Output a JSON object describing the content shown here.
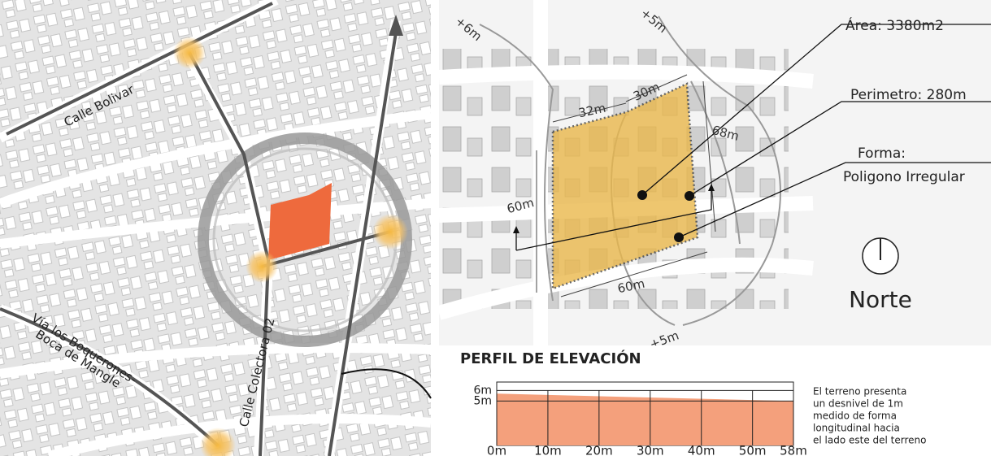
{
  "map": {
    "streets": [
      "Calle Bolivar",
      "Vía los Boquerones-",
      "Boca de Mangle",
      "Calle Colectora 02"
    ]
  },
  "site": {
    "contours": [
      "+6m",
      "+5m",
      "+5m"
    ],
    "dimensions": [
      "32m",
      "30m",
      "68m",
      "60m",
      "60m"
    ],
    "area": "Área: 3380m2",
    "perimeter": "Perimetro: 280m",
    "shape_label": "Forma:",
    "shape": "Poligono Irregular",
    "north": "Norte"
  },
  "chart_data": {
    "type": "area",
    "title": "PERFIL DE ELEVACIÓN",
    "x": [
      0,
      58
    ],
    "values": [
      5.7,
      5.0
    ],
    "color": "#f4a07c",
    "xlim": [
      0,
      58
    ],
    "ylim": [
      0.8,
      6.8
    ],
    "xticks": [
      {
        "value": 0,
        "label": "0m"
      },
      {
        "value": 10,
        "label": "10m"
      },
      {
        "value": 20,
        "label": "20m"
      },
      {
        "value": 30,
        "label": "30m"
      },
      {
        "value": 40,
        "label": "40m"
      },
      {
        "value": 50,
        "label": "50m"
      },
      {
        "value": 58,
        "label": "58m"
      }
    ],
    "yticks": [
      {
        "value": 6,
        "label": "6m"
      },
      {
        "value": 5,
        "label": "5m"
      }
    ],
    "grid": true,
    "annotation": [
      "El terreno presenta",
      "un desnivel de 1m",
      "medido de forma",
      "longitudinal hacia",
      "el lado este del terreno"
    ]
  }
}
